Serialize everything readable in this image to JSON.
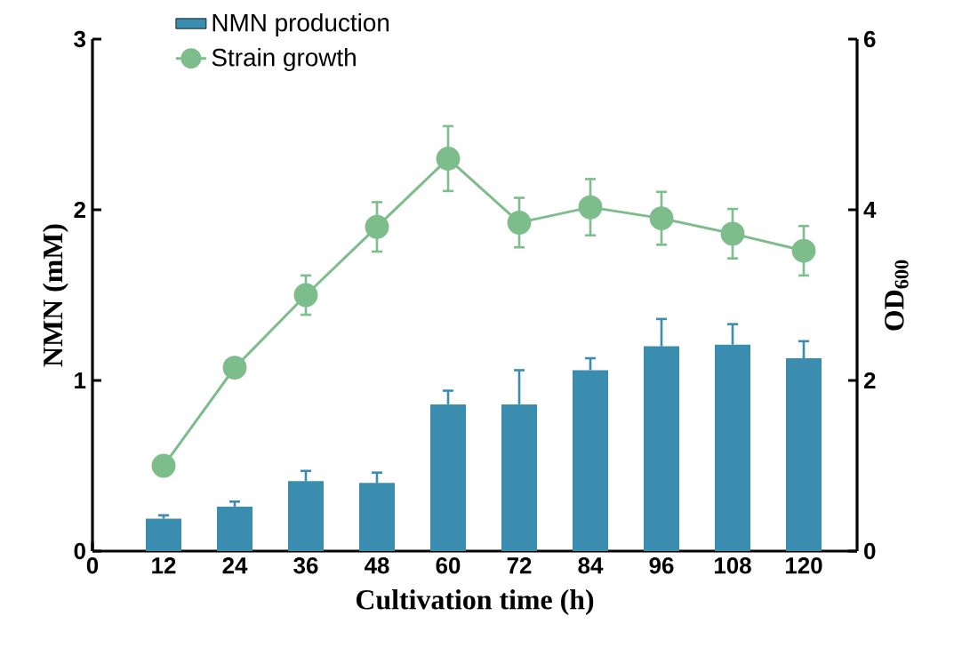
{
  "chart_data": {
    "type": "bar",
    "xlabel": "Cultivation time (h)",
    "ylabel": "NMN (mM)",
    "y2label": "OD$_{600}$",
    "x": [
      12,
      24,
      36,
      48,
      60,
      72,
      84,
      96,
      108,
      120
    ],
    "xlim": [
      0,
      129
    ],
    "xticks": [
      0,
      12,
      24,
      36,
      48,
      60,
      72,
      84,
      96,
      108,
      120
    ],
    "ylim": [
      0,
      3
    ],
    "yticks": [
      0,
      1,
      2,
      3
    ],
    "y2lim": [
      0,
      6
    ],
    "y2ticks": [
      0,
      2,
      4,
      6
    ],
    "legend": "top left",
    "grid": false,
    "series": [
      {
        "name": "NMN production",
        "color": "#3b8db0",
        "values": [
          0.19,
          0.26,
          0.41,
          0.4,
          0.86,
          0.86,
          1.06,
          1.2,
          1.21,
          1.13
        ],
        "errors": [
          [
            0.19,
            0.21
          ],
          [
            0.26,
            0.29
          ],
          [
            0.41,
            0.47
          ],
          [
            0.4,
            0.46
          ],
          [
            0.86,
            0.94
          ],
          [
            0.86,
            1.06
          ],
          [
            1.06,
            1.13
          ],
          [
            1.2,
            1.36
          ],
          [
            1.21,
            1.33
          ],
          [
            1.13,
            1.23
          ]
        ]
      },
      {
        "name": "Strain growth",
        "type": "line",
        "axis": "y2",
        "color": "#7dbd8c",
        "marker": "circle",
        "line_style": "solid",
        "values": [
          1.0,
          2.15,
          3.0,
          3.8,
          4.6,
          3.85,
          4.03,
          3.9,
          3.72,
          3.52
        ],
        "errors": [
          0.05,
          0.1,
          0.23,
          0.29,
          0.38,
          0.29,
          0.33,
          0.31,
          0.29,
          0.29
        ]
      }
    ]
  }
}
